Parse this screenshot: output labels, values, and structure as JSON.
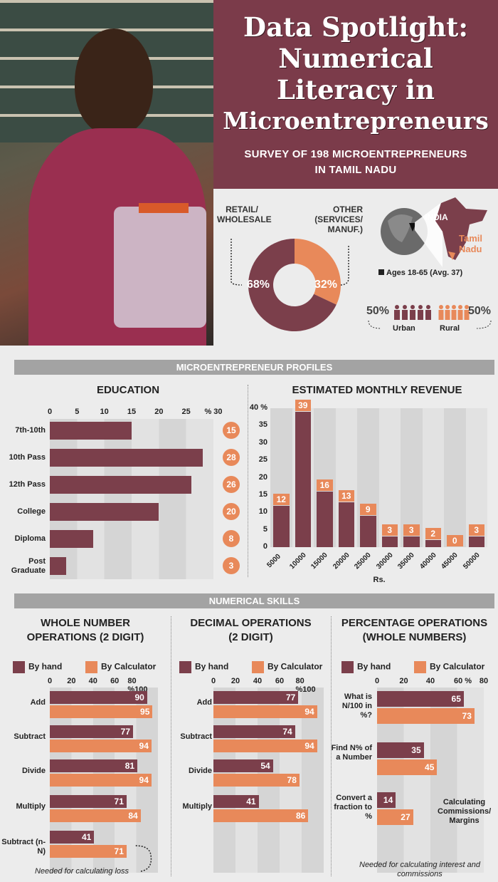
{
  "header": {
    "title_lines": [
      "Data Spotlight:",
      "Numerical",
      "Literacy in",
      "Microentrepreneurs"
    ],
    "subtitle_lines": [
      "SURVEY OF 198 MICROENTREPRENEURS",
      "IN TAMIL NADU"
    ]
  },
  "overview": {
    "business_type": {
      "retail_label_lines": [
        "RETAIL/",
        "WHOLESALE"
      ],
      "other_label_lines": [
        "OTHER",
        "(SERVICES/",
        "MANUF.)"
      ],
      "retail_value": "68%",
      "other_value": "32%",
      "retail_pct": 68,
      "other_pct": 32
    },
    "map": {
      "country": "INDIA",
      "region_lines": [
        "Tamil",
        "Nadu"
      ]
    },
    "ages": "Ages 18-65 (Avg. 37)",
    "urban_value": "50%",
    "rural_value": "50%",
    "urban_label": "Urban",
    "rural_label": "Rural"
  },
  "colors": {
    "maroon": "#7b3f4b",
    "orange": "#e8895a",
    "header_grey": "#a3a3a3",
    "title_bg": "#7b3b4a"
  },
  "sections": {
    "profiles": "MICROENTREPRENEUR PROFILES",
    "skills": "NUMERICAL SKILLS"
  },
  "legend": {
    "hand": "By hand",
    "calc": "By Calculator"
  },
  "chart_data": [
    {
      "id": "education",
      "type": "bar",
      "orientation": "horizontal",
      "title": "EDUCATION",
      "categories": [
        "7th-10th",
        "10th Pass",
        "12th Pass",
        "College",
        "Diploma",
        "Post Graduate"
      ],
      "values": [
        15,
        28,
        26,
        20,
        8,
        3
      ],
      "xlim": [
        0,
        30
      ],
      "xticks": [
        "0",
        "5",
        "10",
        "15",
        "20",
        "25",
        "% 30"
      ],
      "unit": "%"
    },
    {
      "id": "revenue",
      "type": "bar",
      "title": "ESTIMATED MONTHLY REVENUE",
      "categories": [
        "5000",
        "10000",
        "15000",
        "20000",
        "25000",
        "30000",
        "35000",
        "40000",
        "45000",
        "50000"
      ],
      "values": [
        12,
        39,
        16,
        13,
        9,
        3,
        3,
        2,
        0,
        3
      ],
      "ylim": [
        0,
        40
      ],
      "yticks": [
        "0",
        "5",
        "10",
        "15",
        "20",
        "25",
        "30",
        "35",
        "40 %"
      ],
      "xlabel": "Rs.",
      "ylabel": "%"
    },
    {
      "id": "whole",
      "type": "bar",
      "orientation": "horizontal",
      "title_lines": [
        "WHOLE NUMBER",
        "OPERATIONS (2 DIGIT)"
      ],
      "categories": [
        "Add",
        "Subtract",
        "Divide",
        "Multiply",
        "Subtract (n-N)"
      ],
      "series": [
        {
          "name": "By hand",
          "values": [
            90,
            77,
            81,
            71,
            41
          ]
        },
        {
          "name": "By Calculator",
          "values": [
            95,
            94,
            94,
            84,
            71
          ]
        }
      ],
      "xlim": [
        0,
        100
      ],
      "xticks": [
        "0",
        "20",
        "40",
        "60",
        "80 %100"
      ],
      "annotation": "Needed for calculating loss"
    },
    {
      "id": "decimal",
      "type": "bar",
      "orientation": "horizontal",
      "title_lines": [
        "DECIMAL OPERATIONS",
        "(2 DIGIT)"
      ],
      "categories": [
        "Add",
        "Subtract",
        "Divide",
        "Multiply"
      ],
      "series": [
        {
          "name": "By hand",
          "values": [
            77,
            74,
            54,
            41
          ]
        },
        {
          "name": "By Calculator",
          "values": [
            94,
            94,
            78,
            86
          ]
        }
      ],
      "xlim": [
        0,
        100
      ],
      "xticks": [
        "0",
        "20",
        "40",
        "60",
        "80 %100"
      ]
    },
    {
      "id": "percentage",
      "type": "bar",
      "orientation": "horizontal",
      "title_lines": [
        "PERCENTAGE OPERATIONS",
        "(WHOLE NUMBERS)"
      ],
      "categories": [
        "What is N/100 in %?",
        "Find N% of a Number",
        "Convert a fraction to %"
      ],
      "series": [
        {
          "name": "By hand",
          "values": [
            65,
            35,
            14
          ]
        },
        {
          "name": "By Calculator",
          "values": [
            73,
            45,
            27
          ]
        }
      ],
      "xlim": [
        0,
        80
      ],
      "xticks": [
        "0",
        "20",
        "40",
        "60 %",
        "80"
      ],
      "side_annotation": "Calculating Commissions/ Margins",
      "annotation": "Needed for calculating interest and commissions"
    }
  ]
}
